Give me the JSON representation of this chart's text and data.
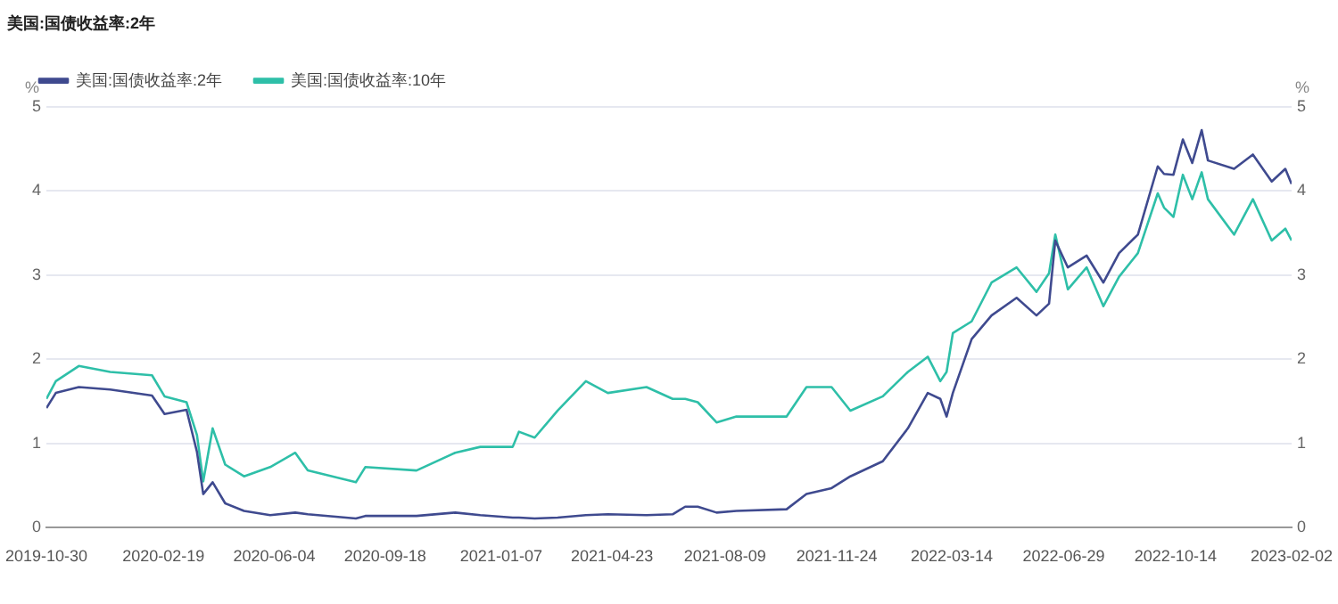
{
  "chart_data": {
    "type": "line",
    "title": "美国:国债收益率:2年",
    "ylabel": "%",
    "y2label": "%",
    "x": [
      "2019-10-30",
      "2019-11-08",
      "2019-11-30",
      "2019-12-30",
      "2020-02-08",
      "2020-02-20",
      "2020-03-12",
      "2020-03-22",
      "2020-03-28",
      "2020-04-06",
      "2020-04-18",
      "2020-05-06",
      "2020-05-31",
      "2020-06-24",
      "2020-07-06",
      "2020-08-21",
      "2020-08-30",
      "2020-10-18",
      "2020-11-24",
      "2020-12-18",
      "2021-01-18",
      "2021-01-24",
      "2021-02-08",
      "2021-03-02",
      "2021-03-29",
      "2021-04-19",
      "2021-05-26",
      "2021-06-20",
      "2021-07-02",
      "2021-07-14",
      "2021-08-01",
      "2021-08-20",
      "2021-10-07",
      "2021-10-26",
      "2021-11-19",
      "2021-12-07",
      "2022-01-07",
      "2022-01-31",
      "2022-02-19",
      "2022-03-03",
      "2022-03-09",
      "2022-03-15",
      "2022-04-02",
      "2022-04-21",
      "2022-05-15",
      "2022-06-03",
      "2022-06-15",
      "2022-06-21",
      "2022-07-03",
      "2022-07-21",
      "2022-08-06",
      "2022-08-21",
      "2022-09-08",
      "2022-09-27",
      "2022-10-03",
      "2022-10-12",
      "2022-10-21",
      "2022-10-30",
      "2022-11-08",
      "2022-11-14",
      "2022-12-09",
      "2022-12-27",
      "2023-01-14",
      "2023-01-27",
      "2023-02-02"
    ],
    "series": [
      {
        "name": "美国:国债收益率:2年",
        "color": "#3f4a8f",
        "values": [
          1.42,
          1.6,
          1.67,
          1.64,
          1.57,
          1.35,
          1.4,
          0.9,
          0.4,
          0.54,
          0.29,
          0.2,
          0.15,
          0.18,
          0.16,
          0.11,
          0.14,
          0.14,
          0.18,
          0.15,
          0.12,
          0.12,
          0.11,
          0.12,
          0.15,
          0.16,
          0.15,
          0.16,
          0.25,
          0.25,
          0.18,
          0.2,
          0.22,
          0.4,
          0.47,
          0.61,
          0.79,
          1.18,
          1.6,
          1.53,
          1.32,
          1.6,
          2.24,
          2.52,
          2.73,
          2.52,
          2.66,
          3.41,
          3.09,
          3.23,
          2.91,
          3.26,
          3.48,
          4.29,
          4.2,
          4.19,
          4.61,
          4.33,
          4.72,
          4.36,
          4.26,
          4.43,
          4.11,
          4.26,
          4.08
        ]
      },
      {
        "name": "美国:国债收益率:10年",
        "color": "#2ebfa8",
        "values": [
          1.53,
          1.74,
          1.92,
          1.85,
          1.81,
          1.56,
          1.49,
          1.1,
          0.55,
          1.18,
          0.75,
          0.61,
          0.72,
          0.89,
          0.68,
          0.54,
          0.72,
          0.68,
          0.89,
          0.96,
          0.96,
          1.14,
          1.07,
          1.39,
          1.74,
          1.6,
          1.67,
          1.53,
          1.53,
          1.49,
          1.25,
          1.32,
          1.32,
          1.67,
          1.67,
          1.39,
          1.56,
          1.85,
          2.03,
          1.74,
          1.85,
          2.31,
          2.45,
          2.91,
          3.09,
          2.8,
          3.02,
          3.48,
          2.83,
          3.09,
          2.63,
          2.98,
          3.26,
          3.97,
          3.8,
          3.69,
          4.19,
          3.9,
          4.22,
          3.9,
          3.48,
          3.9,
          3.41,
          3.55,
          3.41
        ]
      }
    ],
    "xlim": [
      "2019-10-30",
      "2023-02-02"
    ],
    "xticks": [
      "2019-10-30",
      "2020-02-19",
      "2020-06-04",
      "2020-09-18",
      "2021-01-07",
      "2021-04-23",
      "2021-08-09",
      "2021-11-24",
      "2022-03-14",
      "2022-06-29",
      "2022-10-14",
      "2023-02-02"
    ],
    "ylim": [
      0,
      5
    ],
    "yticks": [
      0,
      1,
      2,
      3,
      4,
      5
    ],
    "y2lim": [
      0,
      5
    ],
    "y2ticks": [
      0,
      1,
      2,
      3,
      4,
      5
    ],
    "grid": "y",
    "legend": "top left",
    "marker": "none",
    "line_style": "solid"
  }
}
